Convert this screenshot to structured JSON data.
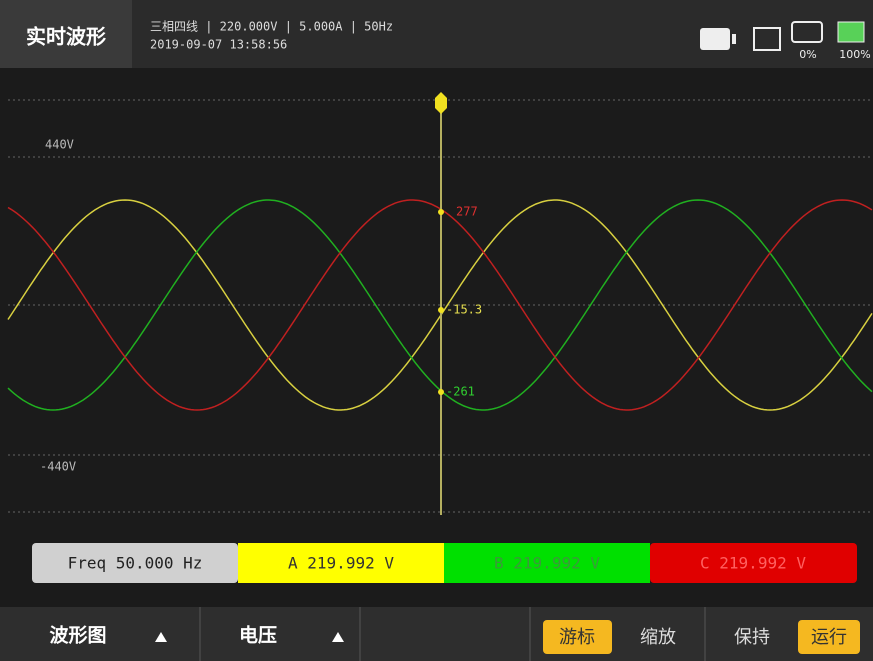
{
  "header": {
    "title": "实时波形",
    "info_line1": "三相四线 | 220.000V | 5.000A | 50Hz",
    "info_line2": "2019-09-07 13:58:56",
    "sd": "0%",
    "battery": "100%"
  },
  "plot": {
    "axis_labels": [
      "440V",
      "-440V"
    ],
    "cursor_readings": [
      "277",
      "-15.3",
      "-261"
    ]
  },
  "readout": [
    "Freq 50.000 Hz",
    "A 219.992 V",
    "B 219.992 V",
    "C 219.992 V"
  ],
  "footer": {
    "menu": [
      "波形图",
      "电压"
    ],
    "buttons": [
      "游标",
      "缩放",
      "保持",
      "运行"
    ]
  }
}
